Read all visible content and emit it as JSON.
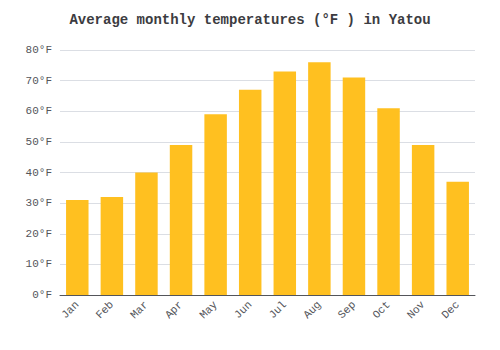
{
  "chart_data": {
    "type": "bar",
    "title": "Average monthly temperatures (°F ) in Yatou",
    "categories": [
      "Jan",
      "Feb",
      "Mar",
      "Apr",
      "May",
      "Jun",
      "Jul",
      "Aug",
      "Sep",
      "Oct",
      "Nov",
      "Dec"
    ],
    "values": [
      31,
      32,
      40,
      49,
      59,
      67,
      73,
      76,
      71,
      61,
      49,
      37
    ],
    "color": "#FFC020",
    "ylim": [
      0,
      80
    ],
    "yticks": [
      {
        "value": 0,
        "label": "0°F"
      },
      {
        "value": 10,
        "label": "10°F"
      },
      {
        "value": 20,
        "label": "20°F"
      },
      {
        "value": 30,
        "label": "30°F"
      },
      {
        "value": 40,
        "label": "40°F"
      },
      {
        "value": 50,
        "label": "50°F"
      },
      {
        "value": 60,
        "label": "60°F"
      },
      {
        "value": 70,
        "label": "70°F"
      },
      {
        "value": 80,
        "label": "80°F"
      }
    ],
    "grid": true
  }
}
